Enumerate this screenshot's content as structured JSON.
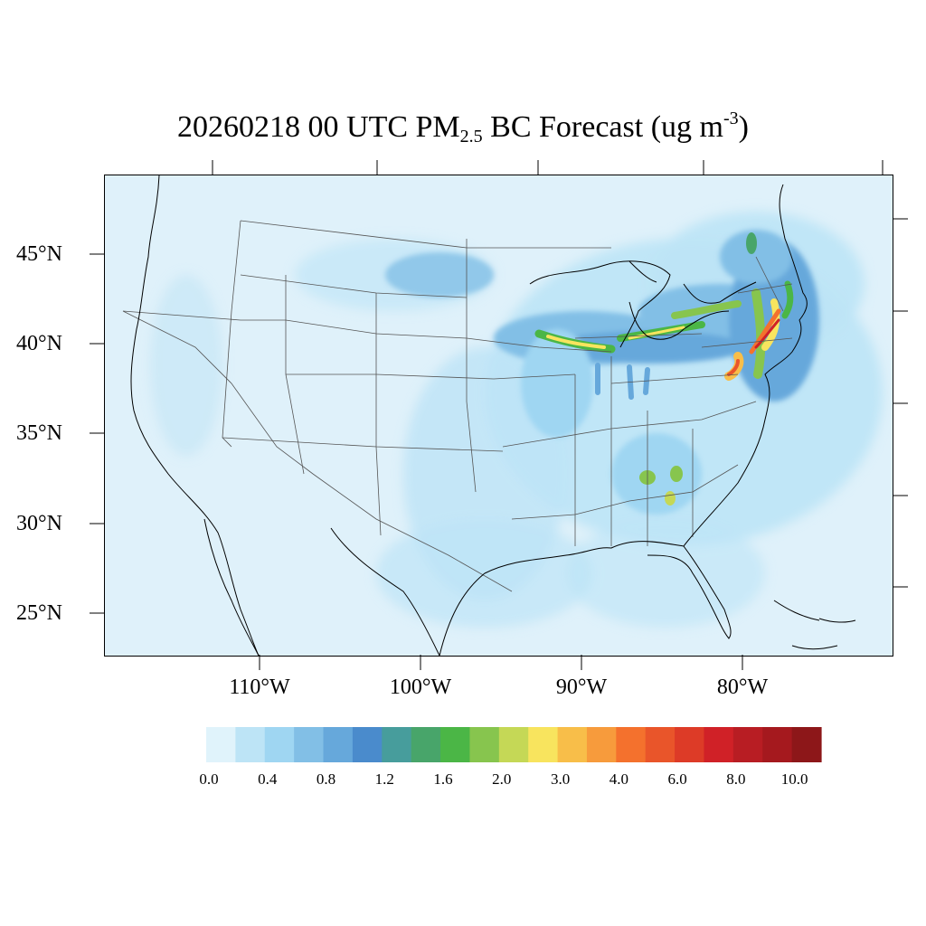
{
  "title": {
    "prefix": "20260218 00 UTC PM",
    "sub": "2.5",
    "mid": " BC Forecast (ug m",
    "sup": "-3",
    "suffix": ")"
  },
  "map": {
    "lat_labels": [
      "45°N",
      "40°N",
      "35°N",
      "30°N",
      "25°N"
    ],
    "lon_labels": [
      "110°W",
      "100°W",
      "90°W",
      "80°W"
    ],
    "background_color": "#dff1fa",
    "coastline_color": "#000000",
    "boundary_color": "#555555"
  },
  "colorbar": {
    "colors": [
      "#e0f3fb",
      "#bde4f6",
      "#9fd6f2",
      "#82bfe6",
      "#66a8db",
      "#4a8bcc",
      "#479d9c",
      "#48a56a",
      "#4bb646",
      "#87c54e",
      "#c5d856",
      "#f8e45e",
      "#f8be49",
      "#f79b3c",
      "#f4712d",
      "#e9552a",
      "#dd3b27",
      "#d02127",
      "#b81d23",
      "#a5191e",
      "#8d1719"
    ],
    "labels": [
      "0.0",
      "0.4",
      "0.8",
      "1.2",
      "1.6",
      "2.0",
      "3.0",
      "4.0",
      "6.0",
      "8.0",
      "10.0"
    ]
  }
}
